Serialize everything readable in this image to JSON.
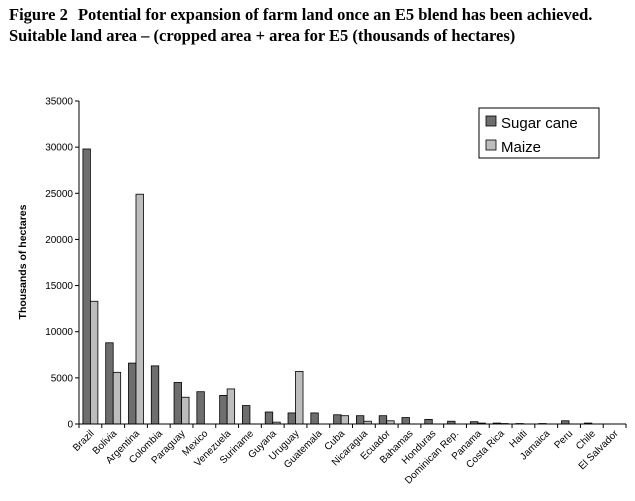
{
  "caption": {
    "label": "Figure 2",
    "text": "Potential for expansion of farm land once an E5 blend has been achieved. Suitable land area – (cropped area + area for E5 (thousands of hectares)"
  },
  "chart_data": {
    "type": "bar",
    "ylabel": "Thousands of hectares",
    "xlabel": "",
    "ylim": [
      0,
      35000
    ],
    "yticks": [
      "35000",
      "30000",
      "25000",
      "20000",
      "15000",
      "10000",
      "5000",
      "0"
    ],
    "legend_position": "top-right",
    "grid": false,
    "categories": [
      "Brazil",
      "Bolivia",
      "Argentina",
      "Colombia",
      "Paraguay",
      "Mexico",
      "Venezuela",
      "Suriname",
      "Guyana",
      "Uruguay",
      "Guatemala",
      "Cuba",
      "Nicaragua",
      "Ecuador",
      "Bahamas",
      "Honduras",
      "Dominican Rep.",
      "Panama",
      "Costa Rica",
      "Haiti",
      "Jamaica",
      "Peru",
      "Chile",
      "El Salvador"
    ],
    "series": [
      {
        "name": "Sugar cane",
        "color": "#6e6e6e",
        "values": [
          29800,
          8800,
          6600,
          6300,
          4500,
          3500,
          3100,
          2000,
          1300,
          1200,
          1200,
          1000,
          900,
          900,
          700,
          500,
          300,
          250,
          100,
          50,
          50,
          350,
          100,
          0
        ]
      },
      {
        "name": "Maize",
        "color": "#bdbdbd",
        "values": [
          13300,
          5600,
          24900,
          0,
          2900,
          0,
          3800,
          0,
          200,
          5700,
          0,
          900,
          300,
          350,
          0,
          0,
          0,
          100,
          50,
          0,
          0,
          0,
          0,
          0
        ]
      }
    ]
  }
}
